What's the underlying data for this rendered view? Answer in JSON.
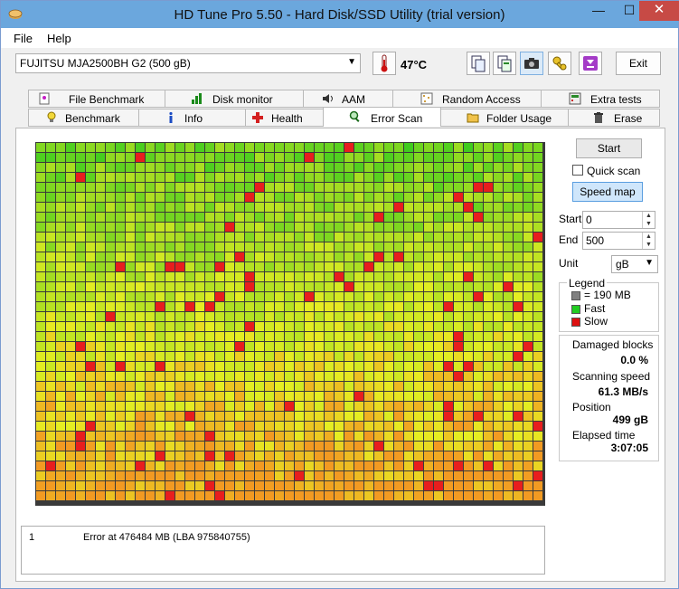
{
  "window": {
    "title": "HD Tune Pro 5.50 - Hard Disk/SSD Utility (trial version)",
    "minimize": "—",
    "maximize": "☐",
    "close": "✕"
  },
  "menu": [
    {
      "label": "File",
      "key": "F"
    },
    {
      "label": "Help",
      "key": "H"
    }
  ],
  "toolbar": {
    "drive": "FUJITSU MJA2500BH G2 (500 gB)",
    "temperature": "47°C",
    "exit_label": "Exit"
  },
  "tabs_top": [
    "File Benchmark",
    "Disk monitor",
    "AAM",
    "Random Access",
    "Extra tests"
  ],
  "tabs_bottom": [
    "Benchmark",
    "Info",
    "Health",
    "Error Scan",
    "Folder Usage",
    "Erase"
  ],
  "active_tab": "Error Scan",
  "controls": {
    "start_label": "Start",
    "quick_scan_label": "Quick scan",
    "quick_scan_checked": false,
    "speed_map_label": "Speed map",
    "start_field_label": "Start",
    "start_value": "0",
    "end_field_label": "End",
    "end_value": "500",
    "unit_label": "Unit",
    "unit_value": "gB"
  },
  "legend": {
    "title": "Legend",
    "items": [
      {
        "label": "= 190 MB",
        "color": "#808080"
      },
      {
        "label": "Fast",
        "color": "#22cc22"
      },
      {
        "label": "Slow",
        "color": "#dd1111"
      }
    ]
  },
  "stats": {
    "damaged_label": "Damaged blocks",
    "damaged_value": "0.0 %",
    "speed_label": "Scanning speed",
    "speed_value": "61.3 MB/s",
    "position_label": "Position",
    "position_value": "499 gB",
    "elapsed_label": "Elapsed time",
    "elapsed_value": "3:07:05"
  },
  "log": [
    {
      "num": "1",
      "message": "Error at 476484 MB (LBA 975840755)"
    }
  ],
  "scan_map": {
    "columns": 51,
    "rows": 36,
    "colors": {
      "fast": "#44cc22",
      "mid": "#ccdd22",
      "slow": "#ee6622",
      "bad": "#dd1111"
    }
  }
}
